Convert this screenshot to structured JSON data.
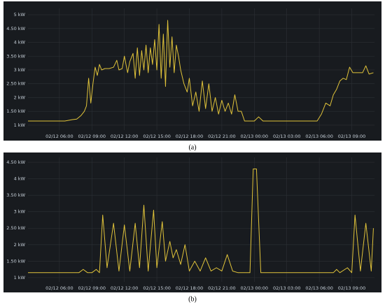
{
  "chart_data": [
    {
      "type": "line",
      "caption": "(a)",
      "color": "#e0c33a",
      "grid": true,
      "x": [
        3.1,
        6.5,
        7.2,
        7.6,
        8.0,
        8.3,
        8.5,
        8.7,
        8.9,
        9.1,
        9.3,
        9.5,
        9.7,
        9.9,
        10.2,
        10.6,
        11.0,
        11.3,
        11.5,
        11.8,
        12.0,
        12.3,
        12.5,
        12.8,
        13.0,
        13.2,
        13.4,
        13.6,
        13.8,
        14.0,
        14.2,
        14.4,
        14.6,
        14.8,
        15.0,
        15.2,
        15.4,
        15.6,
        15.8,
        16.0,
        16.2,
        16.4,
        16.6,
        16.8,
        17.0,
        17.2,
        17.5,
        17.8,
        18.0,
        18.3,
        18.6,
        18.9,
        19.2,
        19.5,
        19.8,
        20.1,
        20.4,
        20.7,
        21.0,
        21.3,
        21.6,
        21.9,
        22.2,
        22.5,
        22.8,
        23.1,
        24.0,
        24.4,
        24.8,
        25.2,
        29.8,
        30.2,
        30.6,
        31.0,
        31.3,
        31.6,
        31.9,
        32.2,
        32.5,
        32.8,
        33.1,
        33.5,
        34.0,
        34.3,
        34.6,
        35.0
      ],
      "values": [
        1.15,
        1.15,
        1.2,
        1.22,
        1.35,
        1.5,
        1.7,
        2.7,
        1.8,
        2.5,
        3.1,
        2.8,
        3.2,
        3.0,
        3.05,
        3.05,
        3.1,
        3.35,
        3.0,
        3.05,
        3.5,
        2.9,
        3.3,
        3.6,
        2.7,
        3.8,
        2.8,
        3.7,
        3.0,
        3.9,
        2.9,
        3.8,
        3.2,
        4.1,
        3.0,
        4.65,
        2.7,
        4.3,
        2.4,
        4.8,
        3.1,
        4.2,
        2.9,
        3.9,
        3.5,
        3.0,
        2.5,
        2.2,
        2.7,
        1.7,
        2.2,
        1.5,
        2.6,
        1.6,
        2.5,
        1.5,
        2.0,
        1.4,
        1.9,
        1.5,
        1.8,
        1.4,
        2.1,
        1.5,
        1.5,
        1.15,
        1.15,
        1.3,
        1.15,
        1.15,
        1.15,
        1.4,
        1.8,
        1.7,
        2.1,
        2.3,
        2.6,
        2.7,
        2.65,
        3.1,
        2.9,
        2.9,
        2.9,
        3.15,
        2.85,
        2.9
      ],
      "xlim": [
        3.1,
        35.1
      ],
      "ylim": [
        0.82,
        5.23
      ],
      "xticks": [
        {
          "value": 6,
          "label": "02/12 06:00"
        },
        {
          "value": 9,
          "label": "02/12 09:00"
        },
        {
          "value": 12,
          "label": "02/12 12:00"
        },
        {
          "value": 15,
          "label": "02/12 15:00"
        },
        {
          "value": 18,
          "label": "02/12 18:00"
        },
        {
          "value": 21,
          "label": "02/12 21:00"
        },
        {
          "value": 24,
          "label": "02/13 00:00"
        },
        {
          "value": 27,
          "label": "02/13 03:00"
        },
        {
          "value": 30,
          "label": "02/13 06:00"
        },
        {
          "value": 33,
          "label": "02/13 09:00"
        }
      ],
      "yticks": [
        {
          "value": 1,
          "label": "1 kW"
        },
        {
          "value": 1.5,
          "label": "1.50 kW"
        },
        {
          "value": 2,
          "label": "2 kW"
        },
        {
          "value": 2.5,
          "label": "2.50 kW"
        },
        {
          "value": 3,
          "label": "3 kW"
        },
        {
          "value": 3.5,
          "label": "3.50 kW"
        },
        {
          "value": 4,
          "label": "4 kW"
        },
        {
          "value": 4.5,
          "label": "4.50 kW"
        },
        {
          "value": 5,
          "label": "5 kW"
        }
      ]
    },
    {
      "type": "line",
      "caption": "(b)",
      "color": "#e0c33a",
      "grid": true,
      "x": [
        3.1,
        7.8,
        8.2,
        8.6,
        9.0,
        9.4,
        9.7,
        10.0,
        10.4,
        11.0,
        11.5,
        12.0,
        12.5,
        13.0,
        13.4,
        13.8,
        14.2,
        14.7,
        15.0,
        15.5,
        15.8,
        16.2,
        16.5,
        16.8,
        17.2,
        17.6,
        18.0,
        18.5,
        19.0,
        19.5,
        20.0,
        20.5,
        21.0,
        21.5,
        22.0,
        22.5,
        23.6,
        23.9,
        24.2,
        24.6,
        31.3,
        31.6,
        31.9,
        32.6,
        33.0,
        33.3,
        33.8,
        34.3,
        34.8,
        35.0
      ],
      "values": [
        1.15,
        1.15,
        1.25,
        1.15,
        1.15,
        1.25,
        1.15,
        2.9,
        1.3,
        2.65,
        1.2,
        2.6,
        1.2,
        2.65,
        1.3,
        3.2,
        1.2,
        3.05,
        1.3,
        2.7,
        1.5,
        2.1,
        1.6,
        1.85,
        1.4,
        2.0,
        1.2,
        1.5,
        1.2,
        1.6,
        1.2,
        1.3,
        1.2,
        1.7,
        1.2,
        1.15,
        1.15,
        4.3,
        4.3,
        1.15,
        1.15,
        1.25,
        1.15,
        1.3,
        1.15,
        2.9,
        1.2,
        2.65,
        1.2,
        2.5
      ],
      "xlim": [
        3.1,
        35.1
      ],
      "ylim": [
        0.87,
        4.65
      ],
      "xticks": [
        {
          "value": 6,
          "label": "02/12 06:00"
        },
        {
          "value": 9,
          "label": "02/12 09:00"
        },
        {
          "value": 12,
          "label": "02/12 12:00"
        },
        {
          "value": 15,
          "label": "02/12 15:00"
        },
        {
          "value": 18,
          "label": "02/12 18:00"
        },
        {
          "value": 21,
          "label": "02/12 21:00"
        },
        {
          "value": 24,
          "label": "02/13 00:00"
        },
        {
          "value": 27,
          "label": "02/13 03:00"
        },
        {
          "value": 30,
          "label": "02/13 06:00"
        },
        {
          "value": 33,
          "label": "02/13 09:00"
        }
      ],
      "yticks": [
        {
          "value": 1,
          "label": "1 kW"
        },
        {
          "value": 1.5,
          "label": "1.50 kW"
        },
        {
          "value": 2,
          "label": "2 kW"
        },
        {
          "value": 2.5,
          "label": "2.50 kW"
        },
        {
          "value": 3,
          "label": "3 kW"
        },
        {
          "value": 3.5,
          "label": "3.50 kW"
        },
        {
          "value": 4,
          "label": "4 kW"
        },
        {
          "value": 4.5,
          "label": "4.50 kW"
        }
      ]
    }
  ]
}
